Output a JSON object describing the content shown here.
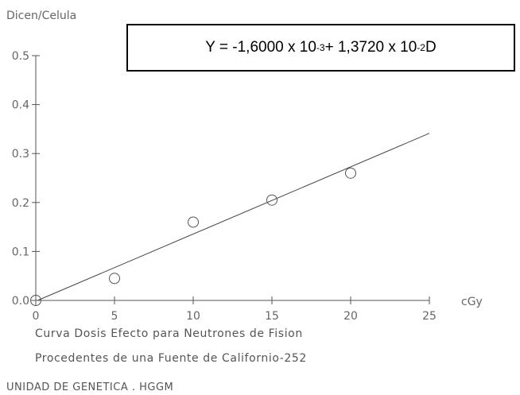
{
  "equation": {
    "prefix": "Y = -1,6000 x 10",
    "exp1": " -3",
    "mid": " + 1,3720 x 10",
    "exp2": "-2",
    "suffix": " D"
  },
  "caption": {
    "line1": "Curva Dosis Efecto para Neutrones de Fision",
    "line2": "Procedentes de una Fuente de Californio-252"
  },
  "footer": "UNIDAD DE GENETICA . HGGM",
  "chart_data": {
    "type": "scatter",
    "title": "",
    "xlabel": "cGy",
    "ylabel": "Dicen/Celula",
    "xlim": [
      0,
      25
    ],
    "ylim": [
      0,
      0.5
    ],
    "x_ticks": [
      0,
      5,
      10,
      15,
      20,
      25
    ],
    "y_ticks": [
      0.0,
      0.1,
      0.2,
      0.3,
      0.4,
      0.5
    ],
    "x_tick_labels": [
      "0",
      "5",
      "10",
      "15",
      "20",
      "25"
    ],
    "y_tick_labels": [
      "0.0",
      "0.1",
      "0.2",
      "0.3",
      "0.4",
      "0.5"
    ],
    "grid": false,
    "points": [
      {
        "x": 0,
        "y": 0.0
      },
      {
        "x": 5,
        "y": 0.045
      },
      {
        "x": 10,
        "y": 0.16
      },
      {
        "x": 15,
        "y": 0.205
      },
      {
        "x": 20,
        "y": 0.26
      }
    ],
    "fit_line": {
      "intercept": -0.0016,
      "slope": 0.01372,
      "x_range": [
        0,
        25
      ]
    }
  }
}
